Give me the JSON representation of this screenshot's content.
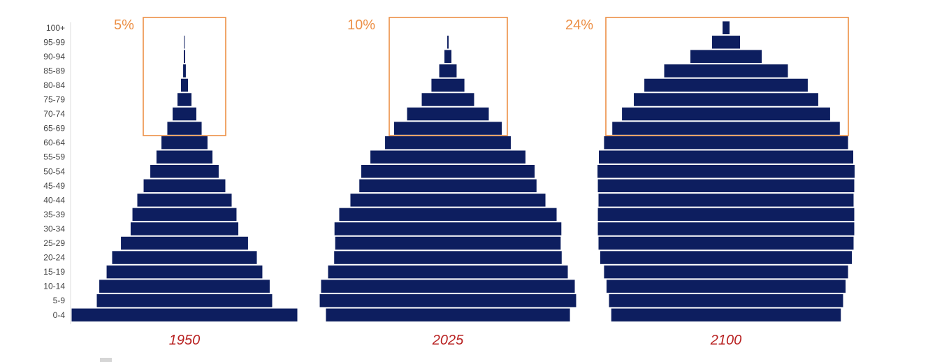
{
  "colors": {
    "bar": "#0d1e5f",
    "highlight": "#ec8f45",
    "year_text": "#b82020",
    "tick_text": "#444444",
    "axis": "#dddddd",
    "legend_swatch": "#d6d6d6"
  },
  "chart_data": {
    "type": "bar",
    "subtype": "population-pyramid",
    "categories": [
      "100+",
      "95-99",
      "90-94",
      "85-89",
      "80-84",
      "75-79",
      "70-74",
      "65-69",
      "60-64",
      "55-59",
      "50-54",
      "45-49",
      "40-44",
      "35-39",
      "30-34",
      "25-29",
      "20-24",
      "15-19",
      "10-14",
      "5-9",
      "0-4"
    ],
    "highlighted_groups": [
      "65-69",
      "70-74",
      "75-79",
      "80-84",
      "85-89",
      "90-94",
      "95-99",
      "100+"
    ],
    "value_unit": "relative width (0-4 group of 1950 = 100)",
    "series": [
      {
        "name": "1950",
        "share_65_plus": "5%",
        "values": [
          0,
          0.3,
          0.6,
          1.2,
          3.1,
          6.2,
          10.5,
          15.2,
          20.4,
          24.8,
          30.3,
          36.2,
          41.8,
          46.1,
          47.7,
          56.3,
          64.1,
          69.0,
          75.5,
          77.7,
          100
        ]
      },
      {
        "name": "2025",
        "share_65_plus": "10%",
        "values": [
          0,
          0.6,
          3.1,
          7.7,
          14.6,
          23.2,
          36.2,
          47.7,
          55.7,
          68.7,
          76.8,
          78.5,
          86.4,
          96.3,
          100.5,
          99.9,
          100.8,
          106.2,
          112.4,
          113.6,
          108.1
        ]
      },
      {
        "name": "2100",
        "share_65_plus": "24%",
        "values": [
          3.1,
          12.4,
          31.6,
          54.8,
          72.4,
          81.7,
          92.2,
          100.8,
          108.1,
          112.7,
          113.9,
          113.6,
          113.0,
          113.6,
          113.6,
          113.0,
          111.5,
          108.1,
          105.9,
          103.7,
          101.7
        ]
      }
    ]
  }
}
